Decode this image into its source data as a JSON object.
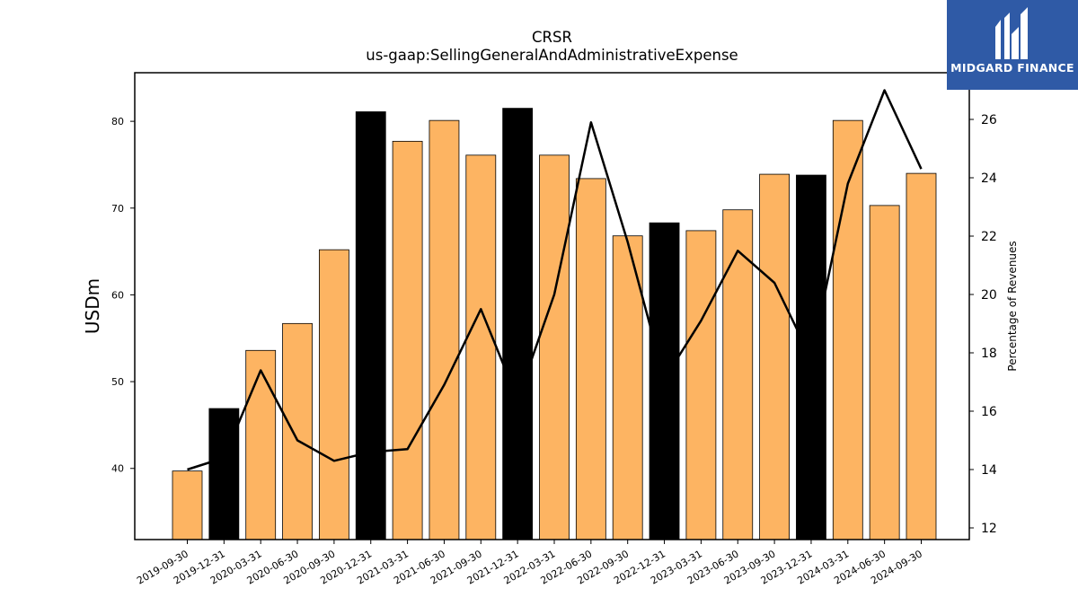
{
  "brand": {
    "name": "MIDGARD FINANCE",
    "logo_icon": "midgard-logo-icon",
    "color": "#2f5aa6"
  },
  "chart_data": {
    "type": "bar",
    "title": "CRSR",
    "subtitle": "us-gaap:SellingGeneralAndAdministrativeExpense",
    "ylabel": "USDm",
    "y2label": "Percentage of Revenues",
    "ylim": [
      31.8,
      85.6
    ],
    "y2lim": [
      11.6,
      27.6
    ],
    "yticks": [
      40,
      50,
      60,
      70,
      80
    ],
    "y2ticks": [
      12,
      14,
      16,
      18,
      20,
      22,
      24,
      26
    ],
    "categories": [
      "2019-09-30",
      "2019-12-31",
      "2020-03-31",
      "2020-06-30",
      "2020-09-30",
      "2020-12-31",
      "2021-03-31",
      "2021-06-30",
      "2021-09-30",
      "2021-12-31",
      "2022-03-31",
      "2022-06-30",
      "2022-09-30",
      "2022-12-31",
      "2023-03-31",
      "2023-06-30",
      "2023-09-30",
      "2023-12-31",
      "2024-03-31",
      "2024-06-30",
      "2024-09-30"
    ],
    "series": [
      {
        "kind": "bar",
        "axis": "left",
        "values": [
          39.7,
          46.9,
          53.6,
          56.7,
          65.2,
          81.1,
          77.7,
          80.1,
          76.1,
          81.5,
          76.1,
          73.4,
          66.8,
          68.3,
          67.4,
          69.8,
          73.9,
          73.8,
          80.1,
          70.3,
          74.0
        ],
        "highlight": [
          false,
          true,
          false,
          false,
          false,
          true,
          false,
          false,
          false,
          true,
          false,
          false,
          false,
          true,
          false,
          false,
          false,
          true,
          false,
          false,
          false
        ]
      },
      {
        "kind": "line",
        "axis": "right",
        "values": [
          14.0,
          14.4,
          17.4,
          15.0,
          14.3,
          14.6,
          14.7,
          16.9,
          19.5,
          16.4,
          20.0,
          25.9,
          21.8,
          17.1,
          19.1,
          21.5,
          20.4,
          17.8,
          23.8,
          27.0,
          24.3
        ]
      }
    ],
    "colors": {
      "bar": "#fdb462",
      "bar_highlight": "#000000",
      "line": "#000000"
    }
  }
}
